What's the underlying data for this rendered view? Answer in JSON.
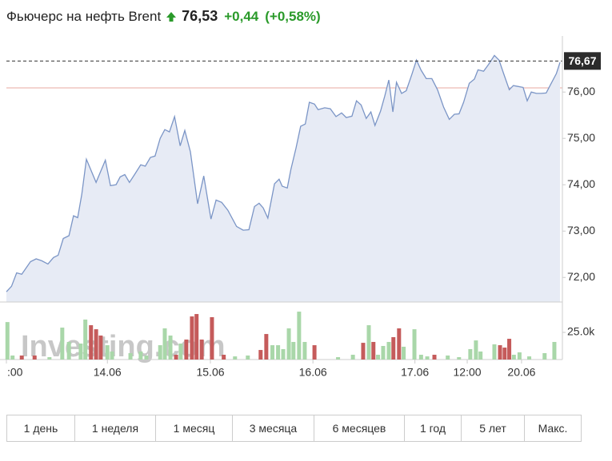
{
  "chart_data": {
    "type": "area",
    "title": "Фьючерс на нефть Brent",
    "price": "76,53",
    "change": "+0,44",
    "change_percent": "(+0,58%)",
    "watermark": "Investing.com",
    "color": "#7b95c6",
    "fill": "#e7ebf5",
    "x": [
      0,
      1,
      2,
      3,
      4.7,
      5.8,
      6.9,
      8.1,
      9.2,
      10.1,
      11.1,
      12.2,
      13.1,
      13.9,
      14.7,
      15.6,
      17.5,
      19.3,
      20.3,
      21.4,
      22.2,
      23.1,
      24,
      25,
      26.2,
      27.1,
      28.1,
      29,
      30,
      30.9,
      31.8,
      32.8,
      33.9,
      34.8,
      35.9,
      37.3,
      38.5,
      39.9,
      40.9,
      42,
      43.2,
      44.9,
      46.2,
      47.3,
      48.4,
      49.3,
      50.1,
      51,
      52.3,
      53.2,
      53.8,
      54.8,
      55.5,
      56.5,
      57.4,
      58.3,
      59.1,
      60.1,
      60.8,
      62.1,
      63.2,
      64.3,
      65.4,
      66.3,
      67.4,
      68.3,
      69.2,
      70.2,
      71.1,
      71.9,
      73,
      73.8,
      74.6,
      75.4,
      76.1,
      77.1,
      78,
      79.1,
      80,
      80.9,
      81.9,
      83,
      84.1,
      85.3,
      86.4,
      87.4,
      88.3,
      89.2,
      90.3,
      91.3,
      92,
      93.1,
      94.1,
      95.2,
      96.1,
      97,
      98.1,
      98.9,
      99.8,
      100.8,
      101.6,
      102.4,
      103.4,
      104.3,
      105.3,
      106.2,
      107.3,
      108
    ],
    "values": [
      71.69,
      71.81,
      72.1,
      72.07,
      72.34,
      72.4,
      72.36,
      72.29,
      72.43,
      72.48,
      72.84,
      72.9,
      73.33,
      73.29,
      73.79,
      74.55,
      74.05,
      74.53,
      73.98,
      74,
      74.17,
      74.22,
      74.05,
      74.22,
      74.43,
      74.4,
      74.59,
      74.62,
      75,
      75.19,
      75.14,
      75.47,
      74.84,
      75.17,
      74.71,
      73.59,
      74.19,
      73.26,
      73.67,
      73.62,
      73.45,
      73.1,
      73.02,
      73.03,
      73.53,
      73.6,
      73.5,
      73.28,
      74.02,
      74.12,
      73.97,
      73.93,
      74.33,
      74.79,
      75.26,
      75.31,
      75.78,
      75.74,
      75.62,
      75.66,
      75.64,
      75.47,
      75.55,
      75.45,
      75.48,
      75.81,
      75.72,
      75.43,
      75.57,
      75.28,
      75.59,
      75.91,
      76.26,
      75.57,
      76.21,
      75.97,
      76.03,
      76.38,
      76.69,
      76.47,
      76.29,
      76.29,
      76.05,
      75.67,
      75.41,
      75.52,
      75.53,
      75.78,
      76.19,
      76.28,
      76.48,
      76.45,
      76.6,
      76.79,
      76.69,
      76.4,
      76.05,
      76.14,
      76.12,
      76.1,
      75.81,
      76,
      75.97,
      75.97,
      75.98,
      76.17,
      76.4,
      76.64
    ],
    "xlim": [
      0,
      108
    ],
    "xticks": [
      {
        "value": 0,
        "label": ":00"
      },
      {
        "value": 19.7,
        "label": "14.06"
      },
      {
        "value": 39.8,
        "label": "15.06"
      },
      {
        "value": 59.8,
        "label": "16.06"
      },
      {
        "value": 79.7,
        "label": "17.06"
      },
      {
        "value": 89.9,
        "label": "12:00"
      },
      {
        "value": 100.5,
        "label": "20.06"
      }
    ],
    "ylim": [
      71.47,
      77.21
    ],
    "yticks": [
      {
        "value": 72,
        "label": "72,00"
      },
      {
        "value": 73,
        "label": "73,00"
      },
      {
        "value": 74,
        "label": "74,00"
      },
      {
        "value": 75,
        "label": "75,00"
      },
      {
        "value": 76,
        "label": "76,00"
      }
    ],
    "last_price": {
      "value": 76.67,
      "label": "76,67"
    },
    "reference_line": {
      "value": 76.09,
      "color": "#e8a8a0"
    },
    "volume": {
      "x": [
        0.2,
        1.2,
        3,
        5.5,
        8.4,
        10.9,
        12.2,
        14.5,
        15.4,
        16.5,
        17.5,
        18.4,
        19.7,
        20.6,
        24.2,
        26.2,
        27.3,
        30,
        30.9,
        32,
        33.1,
        34,
        35.1,
        36.2,
        37.1,
        38.1,
        40.1,
        42.4,
        44.6,
        47.1,
        49.6,
        50.7,
        51.9,
        53,
        54,
        55.1,
        56,
        57.1,
        58.2,
        60.1,
        64.7,
        67.6,
        69.6,
        70.7,
        71.6,
        72.5,
        73.5,
        74.6,
        75.5,
        76.6,
        77.5,
        79.6,
        80.9,
        82.1,
        83.5,
        86.1,
        88.3,
        90.5,
        91.6,
        92.5,
        95.2,
        96.3,
        97.2,
        98.1,
        99,
        100.1,
        102,
        105,
        106.9
      ],
      "values": [
        34500,
        3700,
        3700,
        3700,
        2200,
        29400,
        16200,
        14700,
        36800,
        31600,
        27900,
        22100,
        13200,
        7400,
        5900,
        7400,
        3700,
        13200,
        28700,
        22100,
        4400,
        14700,
        18400,
        39700,
        41900,
        18400,
        39000,
        4400,
        2900,
        3700,
        8800,
        23500,
        13200,
        13200,
        9600,
        28700,
        16200,
        44100,
        16200,
        13200,
        2200,
        4400,
        15400,
        31600,
        16200,
        4400,
        12500,
        16200,
        20600,
        28700,
        11800,
        27900,
        4400,
        2900,
        4400,
        3700,
        2200,
        9600,
        17600,
        7400,
        14000,
        13200,
        11000,
        19100,
        4400,
        6600,
        2900,
        5900,
        16200
      ],
      "colors": [
        "#a9d7a9",
        "#a9d7a9",
        "#c55b5b",
        "#c55b5b",
        "#a9d7a9",
        "#a9d7a9",
        "#a9d7a9",
        "#a9d7a9",
        "#a9d7a9",
        "#c55b5b",
        "#c55b5b",
        "#c55b5b",
        "#a9d7a9",
        "#a9d7a9",
        "#a9d7a9",
        "#a9d7a9",
        "#a9d7a9",
        "#a9d7a9",
        "#a9d7a9",
        "#a9d7a9",
        "#c55b5b",
        "#a9d7a9",
        "#c55b5b",
        "#c55b5b",
        "#c55b5b",
        "#c55b5b",
        "#c55b5b",
        "#c55b5b",
        "#a9d7a9",
        "#a9d7a9",
        "#c55b5b",
        "#c55b5b",
        "#a9d7a9",
        "#a9d7a9",
        "#a9d7a9",
        "#a9d7a9",
        "#a9d7a9",
        "#a9d7a9",
        "#a9d7a9",
        "#c55b5b",
        "#a9d7a9",
        "#a9d7a9",
        "#c55b5b",
        "#a9d7a9",
        "#c55b5b",
        "#a9d7a9",
        "#a9d7a9",
        "#a9d7a9",
        "#c55b5b",
        "#c55b5b",
        "#a9d7a9",
        "#a9d7a9",
        "#a9d7a9",
        "#a9d7a9",
        "#c55b5b",
        "#a9d7a9",
        "#a9d7a9",
        "#a9d7a9",
        "#a9d7a9",
        "#a9d7a9",
        "#a9d7a9",
        "#c55b5b",
        "#c55b5b",
        "#c55b5b",
        "#a9d7a9",
        "#a9d7a9",
        "#a9d7a9",
        "#a9d7a9",
        "#a9d7a9"
      ],
      "ylim": [
        0,
        51500
      ],
      "yticks": [
        {
          "value": 25000,
          "label": "25.0k"
        }
      ]
    }
  },
  "range_buttons": [
    "1 день",
    "1 неделя",
    "1 месяц",
    "3 месяца",
    "6 месяцев",
    "1 год",
    "5 лет",
    "Макс."
  ]
}
